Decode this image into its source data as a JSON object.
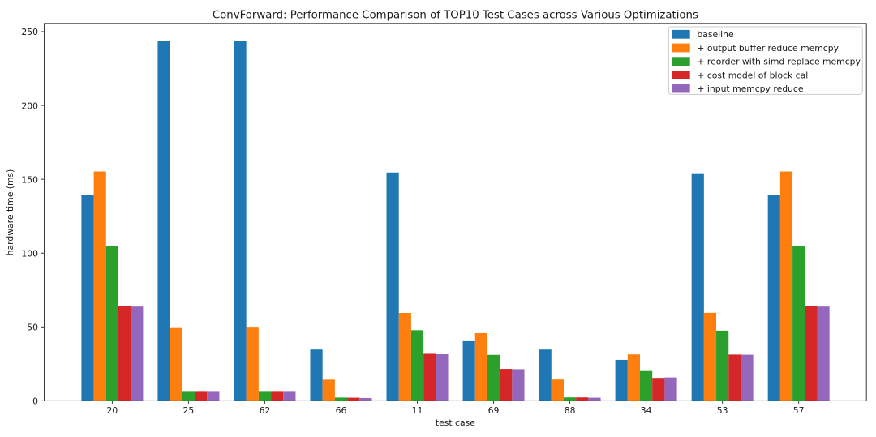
{
  "chart_data": {
    "type": "bar",
    "title": "ConvForward: Performance Comparison of TOP10 Test Cases across Various Optimizations",
    "xlabel": "test case",
    "ylabel": "hardware time (ms)",
    "categories": [
      "20",
      "25",
      "62",
      "66",
      "11",
      "69",
      "88",
      "34",
      "53",
      "57"
    ],
    "series": [
      {
        "name": "baseline",
        "color": "#1f77b4",
        "values": [
          139.2,
          243.5,
          243.5,
          34.7,
          154.6,
          40.9,
          34.7,
          27.7,
          154.1,
          139.2
        ]
      },
      {
        "name": "+ output buffer reduce memcpy",
        "color": "#ff7f0e",
        "values": [
          155.3,
          49.8,
          50.1,
          14.3,
          59.5,
          45.8,
          14.4,
          31.4,
          59.6,
          155.3
        ]
      },
      {
        "name": "+ reorder with simd replace memcpy",
        "color": "#2ca02c",
        "values": [
          104.6,
          6.6,
          6.6,
          2.2,
          47.8,
          31.1,
          2.3,
          20.7,
          47.5,
          104.8
        ]
      },
      {
        "name": "+ cost model of block cal",
        "color": "#d62728",
        "values": [
          64.4,
          6.6,
          6.6,
          2.1,
          31.8,
          21.6,
          2.3,
          15.5,
          31.3,
          64.4
        ]
      },
      {
        "name": "+ input memcpy reduce",
        "color": "#9467bd",
        "values": [
          63.8,
          6.6,
          6.6,
          1.9,
          31.5,
          21.4,
          2.1,
          15.8,
          31.2,
          63.8
        ]
      }
    ],
    "ylim": [
      0,
      255.6
    ],
    "yticks": [
      0,
      50,
      100,
      150,
      200,
      250
    ],
    "grid": false,
    "legend_position": "upper right",
    "axis_color": "#3a3a3a",
    "text_color": "#1a1a1a",
    "legend_border_color": "#cccccc",
    "background_color": "#ffffff"
  }
}
